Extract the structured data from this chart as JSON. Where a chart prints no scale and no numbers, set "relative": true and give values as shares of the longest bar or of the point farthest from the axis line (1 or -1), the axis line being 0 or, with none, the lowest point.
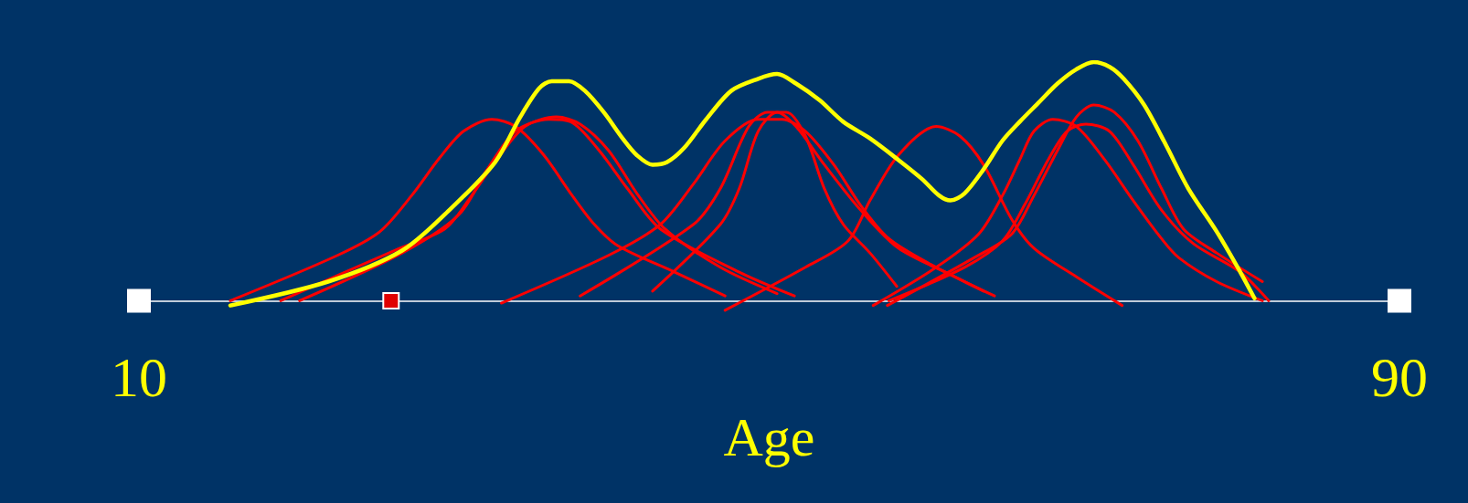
{
  "chart_data": {
    "type": "line",
    "relative": true,
    "xlabel": "Age",
    "xlim": [
      10,
      90
    ],
    "xticks": [
      10,
      90
    ],
    "marker": "none",
    "series": [
      {
        "color": "#ff0000",
        "x": [
          15.8,
          22.6,
          25.3,
          27.3,
          29.1,
          30.6,
          32.4,
          33.9,
          35.7,
          37.4,
          38.9,
          40.4,
          44.0,
          47.2
        ],
        "values": [
          0,
          0.19,
          0.29,
          0.44,
          0.6,
          0.71,
          0.76,
          0.73,
          0.61,
          0.45,
          0.32,
          0.23,
          0.12,
          0.02
        ]
      },
      {
        "color": "#ff0000",
        "x": [
          19.0,
          26.2,
          29.4,
          30.9,
          32.7,
          34.5,
          36.5,
          38.0,
          39.8,
          41.6,
          43.4,
          46.9,
          50.5
        ],
        "values": [
          0,
          0.21,
          0.3,
          0.42,
          0.59,
          0.73,
          0.77,
          0.74,
          0.63,
          0.45,
          0.3,
          0.14,
          0.03
        ]
      },
      {
        "color": "#ff0000",
        "x": [
          20.2,
          26.7,
          30.3,
          32.1,
          33.9,
          36.0,
          37.4,
          39.2,
          41.0,
          43.1,
          48.1,
          51.6
        ],
        "values": [
          0,
          0.2,
          0.36,
          0.55,
          0.71,
          0.76,
          0.75,
          0.63,
          0.47,
          0.3,
          0.12,
          0.02
        ]
      },
      {
        "color": "#ff0000",
        "x": [
          33.0,
          39.8,
          43.1,
          45.2,
          47.2,
          49.3,
          50.8,
          52.3,
          54.1,
          55.8,
          57.6,
          60.6,
          64.3
        ],
        "values": [
          -0.01,
          0.19,
          0.32,
          0.49,
          0.67,
          0.76,
          0.76,
          0.71,
          0.57,
          0.4,
          0.26,
          0.14,
          0.02
        ]
      },
      {
        "color": "#ff0000",
        "x": [
          38.0,
          45.2,
          46.9,
          48.7,
          49.9,
          51.1,
          52.3,
          53.5,
          54.7,
          56.4,
          58.1
        ],
        "values": [
          0.02,
          0.32,
          0.47,
          0.73,
          0.79,
          0.79,
          0.69,
          0.47,
          0.32,
          0.2,
          0.06
        ]
      },
      {
        "color": "#ff0000",
        "x": [
          42.6,
          46.9,
          48.1,
          49.3,
          50.5,
          51.7,
          53.5,
          55.8,
          58.2,
          61.8,
          63.6
        ],
        "values": [
          0.04,
          0.32,
          0.47,
          0.71,
          0.79,
          0.73,
          0.57,
          0.38,
          0.22,
          0.1,
          0.04
        ]
      },
      {
        "color": "#ff0000",
        "x": [
          47.2,
          52.3,
          55.0,
          56.4,
          58.2,
          60.6,
          62.1,
          63.6,
          65.4,
          66.8,
          69.5,
          72.4
        ],
        "values": [
          -0.04,
          0.14,
          0.25,
          0.42,
          0.61,
          0.73,
          0.69,
          0.57,
          0.34,
          0.22,
          0.1,
          -0.02
        ]
      },
      {
        "color": "#ff0000",
        "x": [
          56.6,
          60.6,
          63.3,
          64.8,
          65.9,
          66.8,
          68.0,
          69.5,
          71.3,
          73.1,
          74.9,
          76.0,
          78.4,
          81.3
        ],
        "values": [
          -0.02,
          0.14,
          0.28,
          0.44,
          0.59,
          0.71,
          0.76,
          0.73,
          0.59,
          0.42,
          0.26,
          0.18,
          0.08,
          0
        ]
      },
      {
        "color": "#ff0000",
        "x": [
          57.5,
          63.0,
          65.4,
          66.8,
          68.3,
          69.5,
          70.6,
          71.9,
          73.4,
          74.9,
          76.3,
          78.4,
          81.3
        ],
        "values": [
          -0.02,
          0.18,
          0.28,
          0.44,
          0.63,
          0.77,
          0.82,
          0.79,
          0.67,
          0.47,
          0.3,
          0.2,
          0.08
        ]
      },
      {
        "color": "#ff0000",
        "x": [
          57.6,
          62.4,
          64.8,
          66.2,
          67.7,
          68.9,
          70.1,
          71.6,
          73.1,
          74.9,
          76.9,
          79.9,
          81.7
        ],
        "values": [
          0,
          0.14,
          0.25,
          0.4,
          0.59,
          0.71,
          0.74,
          0.71,
          0.57,
          0.38,
          0.24,
          0.12,
          0
        ]
      },
      {
        "color": "#ffff00",
        "x": [
          15.8,
          22.0,
          26.7,
          29.7,
          32.6,
          34.2,
          35.4,
          36.2,
          37.3,
          38.3,
          39.5,
          40.7,
          41.6,
          42.6,
          43.5,
          44.6,
          46.0,
          47.6,
          49.3,
          50.5,
          51.7,
          53.2,
          54.7,
          56.4,
          58.2,
          59.7,
          60.8,
          61.5,
          62.4,
          63.6,
          64.8,
          65.9,
          67.1,
          68.3,
          69.5,
          70.6,
          71.6,
          72.5,
          73.8,
          75.2,
          76.6,
          78.4,
          79.9,
          80.8
        ],
        "values": [
          -0.02,
          0.08,
          0.21,
          0.38,
          0.58,
          0.77,
          0.89,
          0.92,
          0.92,
          0.88,
          0.79,
          0.68,
          0.61,
          0.57,
          0.58,
          0.64,
          0.76,
          0.88,
          0.93,
          0.95,
          0.91,
          0.84,
          0.75,
          0.68,
          0.59,
          0.51,
          0.44,
          0.42,
          0.45,
          0.55,
          0.67,
          0.75,
          0.83,
          0.91,
          0.97,
          1,
          0.98,
          0.93,
          0.82,
          0.65,
          0.47,
          0.29,
          0.12,
          0.01
        ]
      },
      {
        "type": "scatter",
        "marker": "square",
        "color": "#e00000",
        "x": [
          26.0
        ],
        "values": [
          0
        ]
      },
      {
        "type": "scatter",
        "marker": "square",
        "color": "#ffffff",
        "x": [
          10,
          90
        ],
        "values": [
          0,
          0
        ]
      }
    ]
  }
}
